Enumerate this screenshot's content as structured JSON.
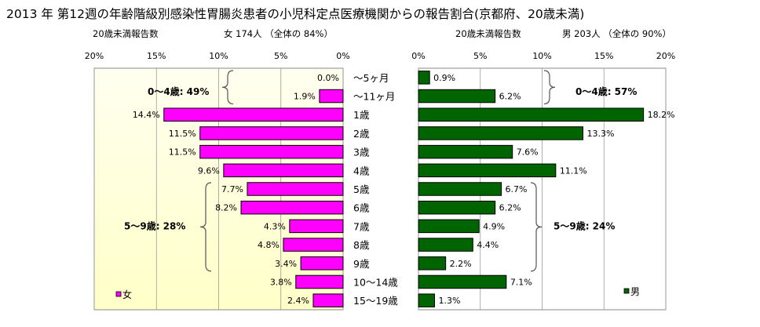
{
  "title": "2013 年 第12週の年齢階級別感染性胃腸炎患者の小児科定点医療機関からの報告割合(京都府、20歳未満)",
  "left_subtitle_a": "20歳未満報告数",
  "left_subtitle_b": "女  174人 （全体の  84%）",
  "right_subtitle_a": "20歳未満報告数",
  "right_subtitle_b": "男  203人 （全体の  90%）",
  "colors": {
    "female": "#ff00ff",
    "male": "#006400",
    "left_bg_top": "#fffff0",
    "left_bg_bottom": "#ffffc8"
  },
  "chart_data": [
    {
      "type": "bar",
      "orientation": "horizontal",
      "direction": "reversed",
      "categories": [
        "～5ヶ月",
        "～11ヶ月",
        "1歳",
        "2歳",
        "3歳",
        "4歳",
        "5歳",
        "6歳",
        "7歳",
        "8歳",
        "9歳",
        "10～14歳",
        "15～19歳"
      ],
      "series": [
        {
          "name": "女",
          "values": [
            0.0,
            1.9,
            14.4,
            11.5,
            11.5,
            9.6,
            7.7,
            8.2,
            4.3,
            4.8,
            3.4,
            3.8,
            2.4
          ],
          "labels": [
            "0.0%",
            "1.9%",
            "14.4%",
            "11.5%",
            "11.5%",
            "9.6%",
            "7.7%",
            "8.2%",
            "4.3%",
            "4.8%",
            "3.4%",
            "3.8%",
            "2.4%"
          ]
        }
      ],
      "xlim": [
        0,
        20
      ],
      "xticks": [
        "20%",
        "15%",
        "10%",
        "5%",
        "0%"
      ],
      "grid": true,
      "brackets": [
        {
          "label": "0～4歳: 49%",
          "from": 0,
          "to": 1
        },
        {
          "label": "5～9歳: 28%",
          "from": 6,
          "to": 10
        }
      ],
      "legend": "女"
    },
    {
      "type": "bar",
      "orientation": "horizontal",
      "direction": "normal",
      "categories": [
        "～5ヶ月",
        "～11ヶ月",
        "1歳",
        "2歳",
        "3歳",
        "4歳",
        "5歳",
        "6歳",
        "7歳",
        "8歳",
        "9歳",
        "10～14歳",
        "15～19歳"
      ],
      "series": [
        {
          "name": "男",
          "values": [
            0.9,
            6.2,
            18.2,
            13.3,
            7.6,
            11.1,
            6.7,
            6.2,
            4.9,
            4.4,
            2.2,
            7.1,
            1.3
          ],
          "labels": [
            "0.9%",
            "6.2%",
            "18.2%",
            "13.3%",
            "7.6%",
            "11.1%",
            "6.7%",
            "6.2%",
            "4.9%",
            "4.4%",
            "2.2%",
            "7.1%",
            "1.3%"
          ]
        }
      ],
      "xlim": [
        0,
        20
      ],
      "xticks": [
        "0%",
        "5%",
        "10%",
        "15%",
        "20%"
      ],
      "grid": true,
      "brackets": [
        {
          "label": "0～4歳: 57%",
          "from": 0,
          "to": 1
        },
        {
          "label": "5～9歳: 24%",
          "from": 6,
          "to": 10
        }
      ],
      "legend": "男"
    }
  ]
}
